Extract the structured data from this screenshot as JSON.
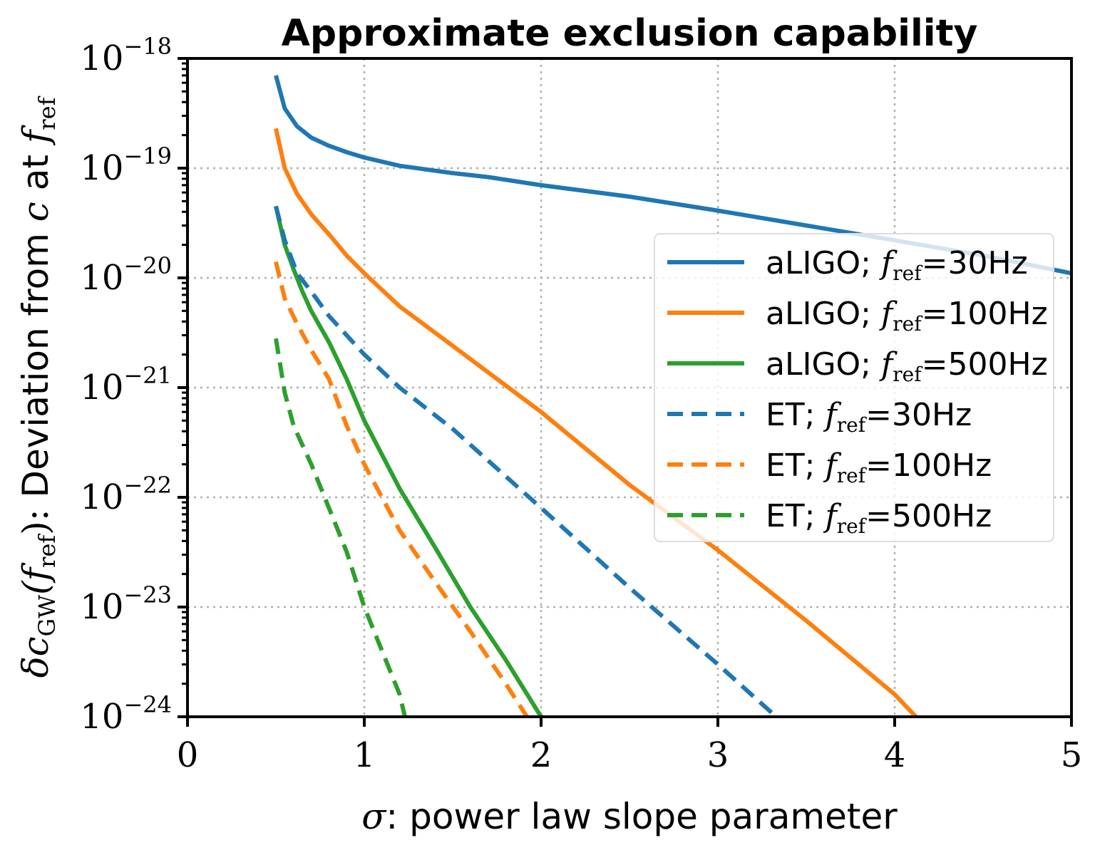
{
  "chart_data": {
    "type": "line",
    "title": "Approximate exclusion capability",
    "xlabel": {
      "symbol": "σ",
      "text": ": power law slope parameter"
    },
    "ylabel": {
      "symbol": "δc",
      "sub": "GW",
      "mid": "(f",
      "sub2": "ref",
      "close": "):",
      "text": " Deviation from ",
      "c": "c",
      "at": " at ",
      "f": "f",
      "sub3": "ref"
    },
    "xlim": [
      0,
      5
    ],
    "ylim": [
      1e-24,
      1e-18
    ],
    "yscale": "log",
    "grid": true,
    "legend_position": "right",
    "x_ticks": [
      {
        "v": 0,
        "label": "0"
      },
      {
        "v": 1,
        "label": "1"
      },
      {
        "v": 2,
        "label": "2"
      },
      {
        "v": 3,
        "label": "3"
      },
      {
        "v": 4,
        "label": "4"
      },
      {
        "v": 5,
        "label": "5"
      }
    ],
    "y_ticks": [
      {
        "v": -18,
        "base": "10",
        "exp": "−18"
      },
      {
        "v": -19,
        "base": "10",
        "exp": "−19"
      },
      {
        "v": -20,
        "base": "10",
        "exp": "−20"
      },
      {
        "v": -21,
        "base": "10",
        "exp": "−21"
      },
      {
        "v": -22,
        "base": "10",
        "exp": "−22"
      },
      {
        "v": -23,
        "base": "10",
        "exp": "−23"
      },
      {
        "v": -24,
        "base": "10",
        "exp": "−24"
      }
    ],
    "series": [
      {
        "name": "aLIGO; f_ref=30Hz",
        "detector": "aLIGO",
        "fref": "30Hz",
        "color": "#1f77b4",
        "dash": false,
        "x": [
          0.5,
          0.55,
          0.62,
          0.7,
          0.8,
          0.9,
          1.0,
          1.2,
          1.5,
          1.7,
          2.0,
          2.5,
          3.0,
          3.5,
          4.0,
          4.5,
          5.0
        ],
        "y": [
          7e-19,
          3.5e-19,
          2.4e-19,
          1.9e-19,
          1.6e-19,
          1.4e-19,
          1.25e-19,
          1.05e-19,
          9e-20,
          8.3e-20,
          7e-20,
          5.5e-20,
          4.1e-20,
          3e-20,
          2.2e-20,
          1.6e-20,
          1.1e-20
        ]
      },
      {
        "name": "aLIGO; f_ref=100Hz",
        "detector": "aLIGO",
        "fref": "100Hz",
        "color": "#ff7f0e",
        "dash": false,
        "x": [
          0.5,
          0.55,
          0.62,
          0.7,
          0.8,
          0.9,
          1.0,
          1.2,
          1.5,
          2.0,
          2.5,
          3.0,
          3.5,
          4.0,
          4.12
        ],
        "y": [
          2.3e-19,
          1e-19,
          5.8e-20,
          3.8e-20,
          2.5e-20,
          1.6e-20,
          1.1e-20,
          5.5e-21,
          2.4e-21,
          6e-22,
          1.3e-22,
          3.3e-23,
          7.5e-24,
          1.6e-24,
          1e-24
        ]
      },
      {
        "name": "aLIGO; f_ref=500Hz",
        "detector": "aLIGO",
        "fref": "500Hz",
        "color": "#2ca02c",
        "dash": false,
        "x": [
          0.5,
          0.55,
          0.6,
          0.65,
          0.7,
          0.8,
          0.9,
          1.0,
          1.2,
          1.4,
          1.6,
          1.8,
          2.0
        ],
        "y": [
          4.5e-20,
          2e-20,
          1.2e-20,
          7.5e-21,
          5e-21,
          2.6e-21,
          1.2e-21,
          5e-22,
          1.2e-22,
          3.5e-23,
          1e-23,
          3.3e-24,
          1e-24
        ]
      },
      {
        "name": "ET; f_ref=30Hz",
        "detector": "ET",
        "fref": "30Hz",
        "color": "#1f77b4",
        "dash": true,
        "x": [
          0.5,
          0.55,
          0.62,
          0.7,
          0.8,
          1.0,
          1.2,
          1.5,
          2.0,
          2.5,
          3.0,
          3.33
        ],
        "y": [
          4.5e-20,
          2.2e-20,
          1.1e-20,
          7.5e-21,
          4.5e-21,
          2e-21,
          1e-21,
          4.2e-22,
          8e-23,
          1.5e-23,
          3e-24,
          1e-24
        ]
      },
      {
        "name": "ET; f_ref=100Hz",
        "detector": "ET",
        "fref": "100Hz",
        "color": "#ff7f0e",
        "dash": true,
        "x": [
          0.5,
          0.55,
          0.62,
          0.7,
          0.8,
          0.9,
          1.0,
          1.2,
          1.4,
          1.6,
          1.8,
          1.92
        ],
        "y": [
          1.4e-20,
          6.5e-21,
          3.8e-21,
          2.2e-21,
          1.2e-21,
          4.5e-22,
          2e-22,
          5e-23,
          1.7e-23,
          6e-24,
          2e-24,
          1e-24
        ]
      },
      {
        "name": "ET; f_ref=500Hz",
        "detector": "ET",
        "fref": "500Hz",
        "color": "#2ca02c",
        "dash": true,
        "x": [
          0.5,
          0.55,
          0.6,
          0.7,
          0.8,
          0.9,
          1.0,
          1.1,
          1.2,
          1.23
        ],
        "y": [
          2.8e-21,
          9e-22,
          4.5e-22,
          2e-22,
          8e-23,
          3.2e-23,
          1e-23,
          4e-24,
          1.6e-24,
          1e-24
        ]
      }
    ]
  }
}
